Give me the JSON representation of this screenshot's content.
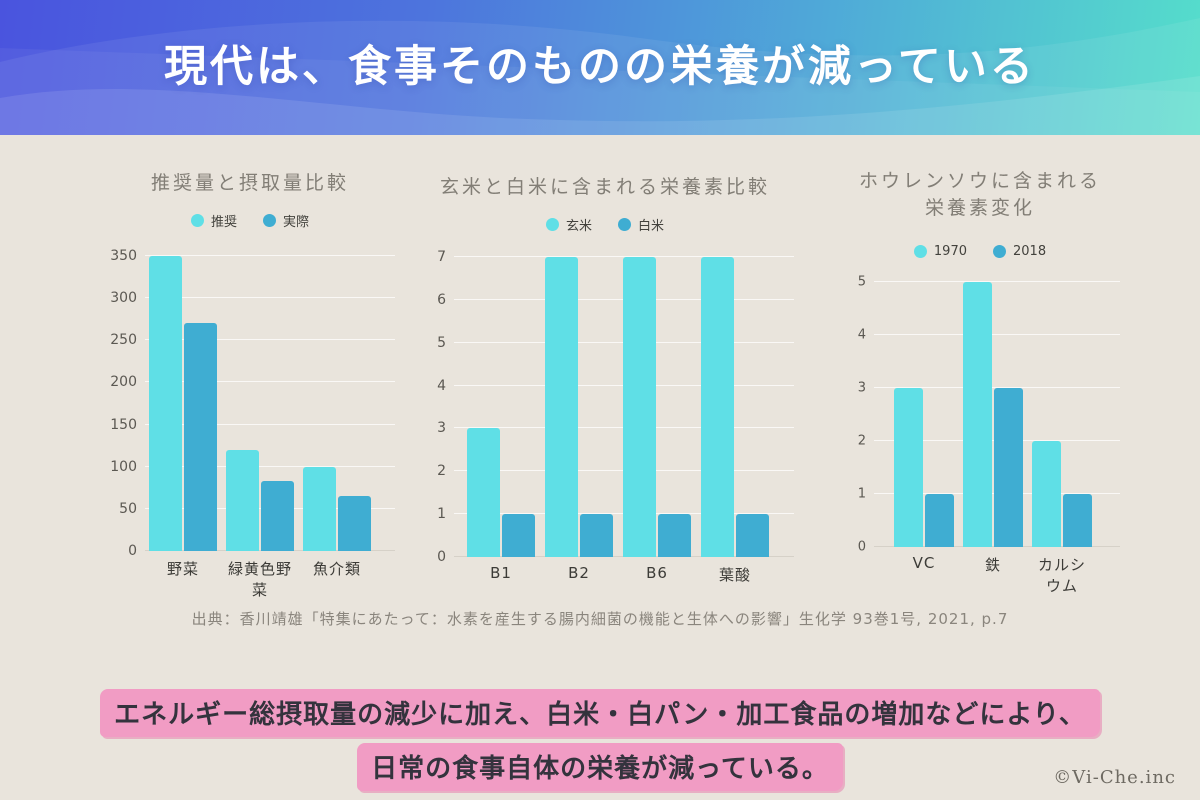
{
  "header": {
    "title": "現代は、食事そのものの栄養が減っている"
  },
  "colors": {
    "background": "#e9e4dc",
    "header_gradient": [
      "#4a54de",
      "#4d74dd",
      "#55decb"
    ],
    "series_light": "#5fdfe6",
    "series_dark": "#3fadd2",
    "highlight_pink": "#f19cc4",
    "footer_text": "#34333d"
  },
  "chart_data": [
    {
      "type": "bar",
      "title": "推奨量と摂取量比較",
      "title_lines": [
        "推奨量と摂取量比較"
      ],
      "categories": [
        "野菜",
        "緑黄色野菜",
        "魚介類"
      ],
      "series": [
        {
          "name": "推奨",
          "color": "#5fdfe6",
          "values": [
            350,
            120,
            100
          ]
        },
        {
          "name": "実際",
          "color": "#3fadd2",
          "values": [
            270,
            83,
            65
          ]
        }
      ],
      "y_ticks": [
        0,
        50,
        100,
        150,
        200,
        250,
        300,
        350
      ],
      "ylim": [
        0,
        350
      ],
      "grid": true,
      "legend_position": "top"
    },
    {
      "type": "bar",
      "title": "玄米と白米に含まれる栄養素比較",
      "title_lines": [
        "玄米と白米に含まれる栄養素比較"
      ],
      "categories": [
        "B1",
        "B2",
        "B6",
        "葉酸"
      ],
      "series": [
        {
          "name": "玄米",
          "color": "#5fdfe6",
          "values": [
            3,
            7,
            7,
            7
          ]
        },
        {
          "name": "白米",
          "color": "#3fadd2",
          "values": [
            1,
            1,
            1,
            1
          ]
        }
      ],
      "y_ticks": [
        0,
        1,
        2,
        3,
        4,
        5,
        6,
        7
      ],
      "ylim": [
        0,
        7
      ],
      "grid": true,
      "legend_position": "top"
    },
    {
      "type": "bar",
      "title": "ホウレンソウに含まれる栄養素変化",
      "title_lines": [
        "ホウレンソウに含まれる",
        "栄養素変化"
      ],
      "categories": [
        "VC",
        "鉄",
        "カルシウム"
      ],
      "series": [
        {
          "name": "1970",
          "color": "#5fdfe6",
          "values": [
            3,
            5,
            2
          ]
        },
        {
          "name": "2018",
          "color": "#3fadd2",
          "values": [
            1,
            3,
            1
          ]
        }
      ],
      "y_ticks": [
        0,
        1,
        2,
        3,
        4,
        5
      ],
      "ylim": [
        0,
        5
      ],
      "grid": true,
      "legend_position": "top"
    }
  ],
  "source": "出典：香川靖雄「特集にあたって：水素を産生する腸内細菌の機能と生体への影響」生化学 93巻1号, 2021, p.7",
  "footer": {
    "line1": "エネルギー総摂取量の減少に加え、白米・白パン・加工食品の増加などにより、",
    "line2": "日常の食事自体の栄養が減っている。",
    "copyright": "©Vi-Che.inc"
  }
}
